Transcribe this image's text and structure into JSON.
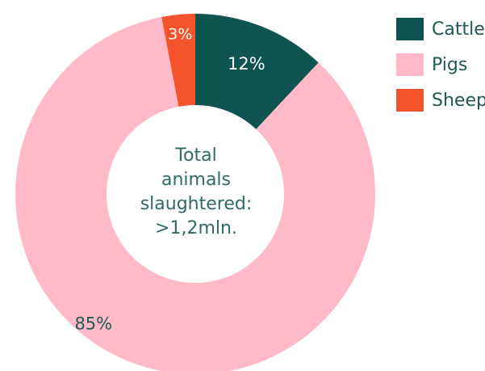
{
  "chart_data": {
    "type": "pie",
    "donut": true,
    "categories": [
      "Cattle",
      "Pigs",
      "Sheep"
    ],
    "values": [
      12,
      85,
      3
    ],
    "data_labels": [
      "12%",
      "85%",
      "3%"
    ],
    "colors": [
      "#0f5450",
      "#ffb9c8",
      "#f4532c"
    ],
    "label_colors": [
      "#ffffff",
      "#1f5954",
      "#ffffff"
    ],
    "legend": "top-right",
    "center_text": [
      "Total",
      "animals",
      "slaughtered:",
      ">1,2mln."
    ]
  }
}
